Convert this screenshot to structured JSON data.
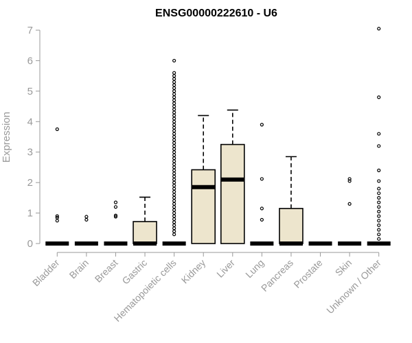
{
  "chart_data": {
    "type": "boxplot",
    "title": "ENSG00000222610 - U6",
    "xlabel": "",
    "ylabel": "Expression",
    "ylim": [
      0,
      7
    ],
    "yticks": [
      0,
      1,
      2,
      3,
      4,
      5,
      6,
      7
    ],
    "colors": {
      "box_fill": "#ede5cd",
      "box_stroke": "#000000",
      "axis": "#999999"
    },
    "categories": [
      "Bladder",
      "Brain",
      "Breast",
      "Gastric",
      "Hematopoietic cells",
      "Kidney",
      "Liver",
      "Lung",
      "Pancreas",
      "Prostate",
      "Skin",
      "Unknown / Other"
    ],
    "boxes": [
      {
        "q1": 0,
        "median": 0,
        "q3": 0,
        "whisker_low": 0,
        "whisker_high": 0,
        "outliers": [
          0.75,
          0.85,
          0.9,
          3.75
        ]
      },
      {
        "q1": 0,
        "median": 0,
        "q3": 0,
        "whisker_low": 0,
        "whisker_high": 0,
        "outliers": [
          0.78,
          0.88
        ]
      },
      {
        "q1": 0,
        "median": 0,
        "q3": 0,
        "whisker_low": 0,
        "whisker_high": 0,
        "outliers": [
          0.88,
          0.92,
          1.2,
          1.35
        ]
      },
      {
        "q1": 0,
        "median": 0,
        "q3": 0.72,
        "whisker_low": 0,
        "whisker_high": 1.52,
        "outliers": []
      },
      {
        "q1": 0,
        "median": 0,
        "q3": 0,
        "whisker_low": 0,
        "whisker_high": 0,
        "outliers": [
          0.3,
          0.4,
          0.5,
          0.6,
          0.7,
          0.8,
          0.9,
          1.0,
          1.1,
          1.2,
          1.3,
          1.4,
          1.5,
          1.6,
          1.7,
          1.8,
          1.9,
          2.0,
          2.1,
          2.2,
          2.3,
          2.4,
          2.5,
          2.6,
          2.7,
          2.8,
          2.9,
          3.0,
          3.1,
          3.2,
          3.3,
          3.4,
          3.5,
          3.6,
          3.7,
          3.8,
          3.9,
          4.0,
          4.1,
          4.2,
          4.3,
          4.4,
          4.5,
          4.6,
          4.7,
          4.8,
          4.9,
          5.0,
          5.1,
          5.2,
          5.3,
          5.4,
          5.5,
          5.6,
          6.0
        ]
      },
      {
        "q1": 0,
        "median": 1.85,
        "q3": 2.42,
        "whisker_low": 0,
        "whisker_high": 4.2,
        "outliers": []
      },
      {
        "q1": 0,
        "median": 2.1,
        "q3": 3.25,
        "whisker_low": 0,
        "whisker_high": 4.38,
        "outliers": []
      },
      {
        "q1": 0,
        "median": 0,
        "q3": 0,
        "whisker_low": 0,
        "whisker_high": 0,
        "outliers": [
          0.78,
          1.15,
          2.12,
          3.9
        ]
      },
      {
        "q1": 0,
        "median": 0,
        "q3": 1.15,
        "whisker_low": 0,
        "whisker_high": 2.85,
        "outliers": []
      },
      {
        "q1": 0,
        "median": 0,
        "q3": 0,
        "whisker_low": 0,
        "whisker_high": 0,
        "outliers": []
      },
      {
        "q1": 0,
        "median": 0,
        "q3": 0,
        "whisker_low": 0,
        "whisker_high": 0,
        "outliers": [
          1.3,
          2.05,
          2.12
        ]
      },
      {
        "q1": 0,
        "median": 0,
        "q3": 0,
        "whisker_low": 0,
        "whisker_high": 0,
        "outliers": [
          0.15,
          0.3,
          0.45,
          0.6,
          0.75,
          0.9,
          1.05,
          1.2,
          1.35,
          1.5,
          1.65,
          1.8,
          2.05,
          2.4,
          3.2,
          3.6,
          4.8,
          7.05
        ]
      }
    ]
  }
}
